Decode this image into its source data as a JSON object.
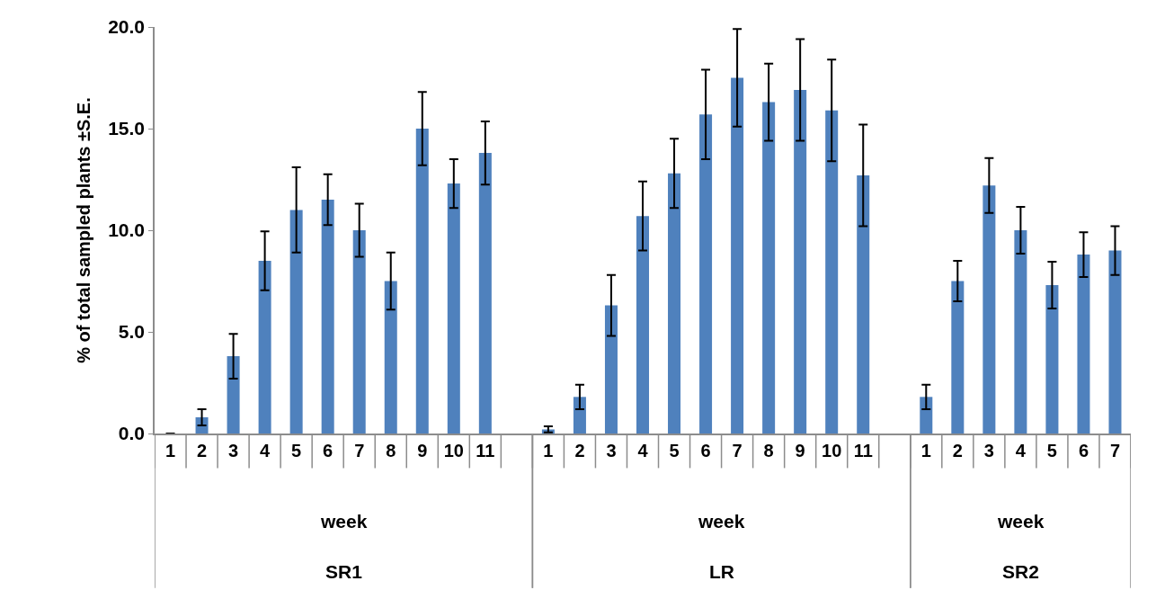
{
  "chart_data": {
    "type": "bar",
    "ylabel": "% of total sampled plants ±S.E.",
    "categories": [
      "1",
      "2",
      "3",
      "4",
      "5",
      "6",
      "7",
      "8",
      "9",
      "10",
      "11",
      null,
      "1",
      "2",
      "3",
      "4",
      "5",
      "6",
      "7",
      "8",
      "9",
      "10",
      "11",
      null,
      "1",
      "2",
      "3",
      "4",
      "5",
      "6",
      "7"
    ],
    "values": [
      0.0,
      0.8,
      3.8,
      8.5,
      11.0,
      11.5,
      10.0,
      7.5,
      15.0,
      12.3,
      13.8,
      null,
      0.2,
      1.8,
      6.3,
      10.7,
      12.8,
      15.7,
      17.5,
      16.3,
      16.9,
      15.9,
      12.7,
      null,
      1.8,
      7.5,
      12.2,
      10.0,
      7.3,
      8.8,
      9.0
    ],
    "errors": [
      null,
      0.4,
      1.1,
      1.45,
      2.1,
      1.25,
      1.3,
      1.4,
      1.8,
      1.2,
      1.55,
      null,
      0.15,
      0.6,
      1.5,
      1.7,
      1.7,
      2.2,
      2.4,
      1.9,
      2.5,
      2.5,
      2.5,
      null,
      0.6,
      1.0,
      1.35,
      1.15,
      1.15,
      1.1,
      1.2
    ],
    "color": "#4f81bd",
    "ylim": [
      0,
      20
    ],
    "yticks": [
      {
        "value": 0,
        "label": "0.0"
      },
      {
        "value": 5,
        "label": "5.0"
      },
      {
        "value": 10,
        "label": "10.0"
      },
      {
        "value": 15,
        "label": "15.0"
      },
      {
        "value": 20,
        "label": "20.0"
      }
    ],
    "annotations": [
      "week",
      "SR1",
      "week",
      "LR",
      "week",
      "SR2"
    ]
  }
}
